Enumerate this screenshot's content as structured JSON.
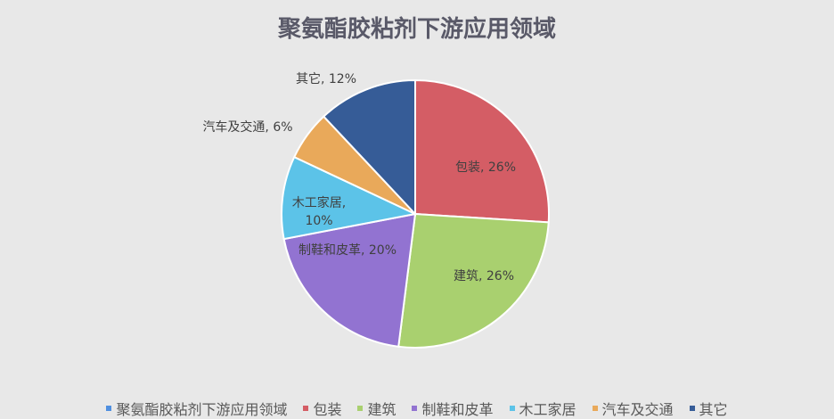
{
  "chart_data": {
    "type": "pie",
    "title": "聚氨酯胶粘剂下游应用领域",
    "series_name": "聚氨酯胶粘剂下游应用领域",
    "series_color": "#4f8fe0",
    "categories": [
      "包装",
      "建筑",
      "制鞋和皮革",
      "木工家居",
      "汽车及交通",
      "其它"
    ],
    "values": [
      26,
      26,
      20,
      10,
      6,
      12
    ],
    "value_labels": [
      "26%",
      "26%",
      "20%",
      "10%",
      "6%",
      "12%"
    ],
    "colors": [
      "#d45d65",
      "#a9d06f",
      "#9273d1",
      "#5cc3e8",
      "#e9a95a",
      "#365c97"
    ],
    "start": "top",
    "direction": "clockwise",
    "legend": "bottom"
  }
}
